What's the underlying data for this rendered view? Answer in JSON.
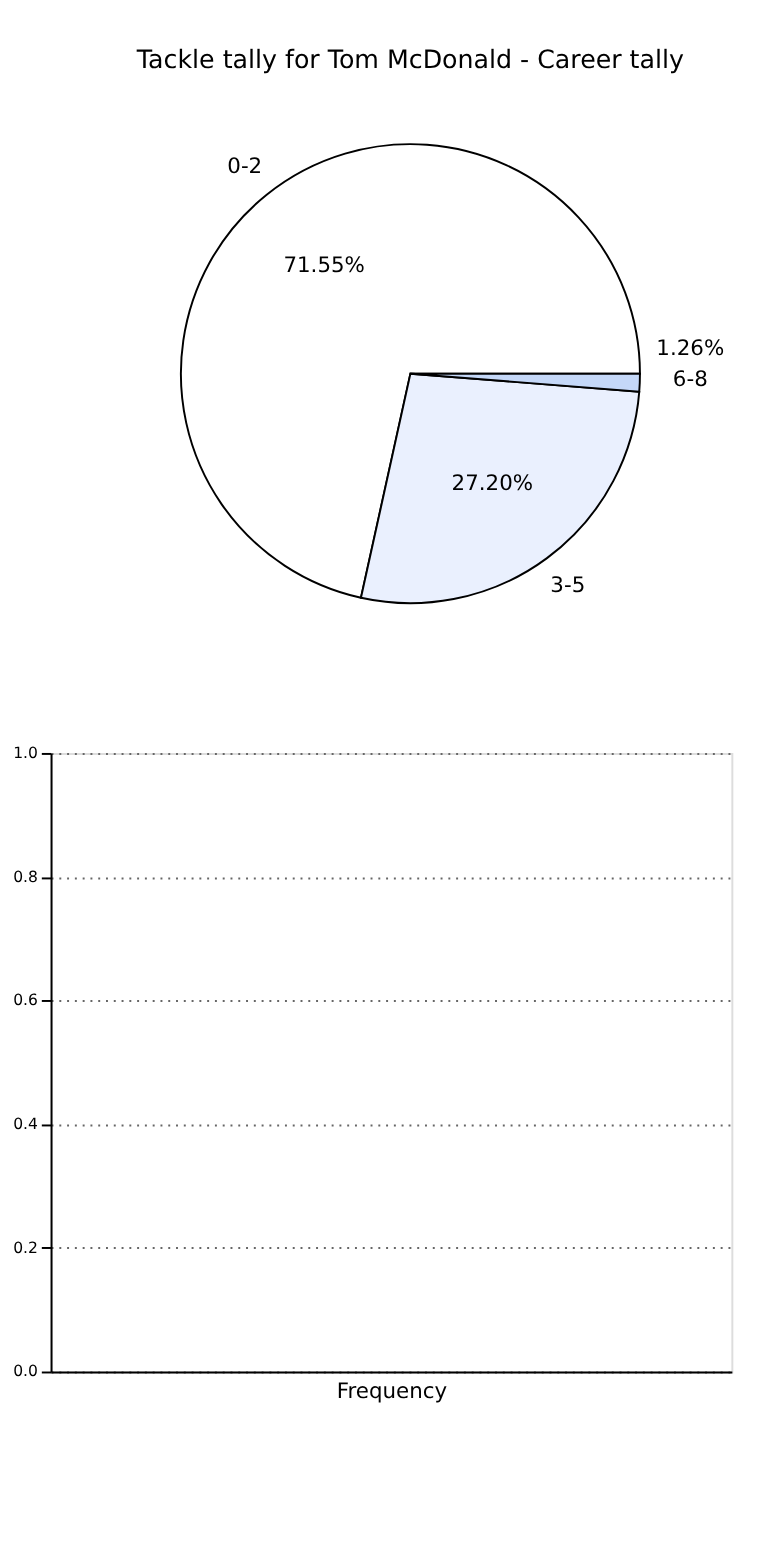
{
  "chart_data": [
    {
      "type": "pie",
      "title": "Tackle tally for Tom McDonald - Career tally",
      "categories": [
        "0-2",
        "3-5",
        "6-8"
      ],
      "values": [
        71.55,
        27.2,
        1.26
      ],
      "colors": [
        "#ffffff",
        "#eaf0fe",
        "#c5d8f8"
      ],
      "value_labels": [
        "71.55%",
        "27.20%",
        "1.26%"
      ]
    },
    {
      "type": "bar",
      "categories": [
        null
      ],
      "values": [
        0
      ],
      "xlabel": "Frequency",
      "ylim": [
        0,
        1
      ],
      "yticks": [
        {
          "value": 0,
          "label": "0.0"
        },
        {
          "value": 0.2,
          "label": "0.2"
        },
        {
          "value": 0.4,
          "label": "0.4"
        },
        {
          "value": 0.6,
          "label": "0.6"
        },
        {
          "value": 0.8,
          "label": "0.8"
        },
        {
          "value": 1,
          "label": "1.0"
        }
      ],
      "grid": "y"
    }
  ]
}
